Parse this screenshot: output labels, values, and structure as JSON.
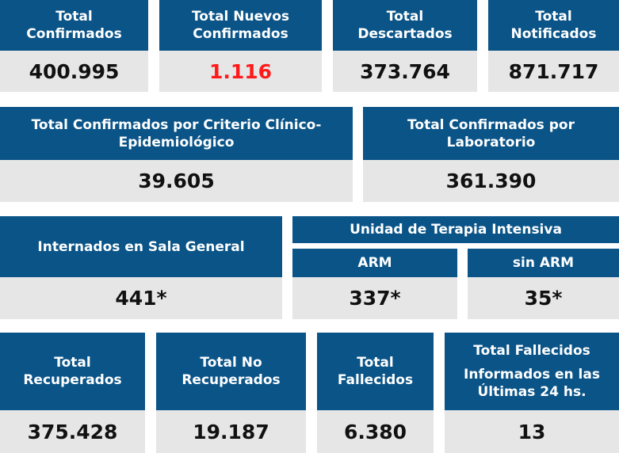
{
  "row1": {
    "confirmados": {
      "title": [
        "Total",
        "Confirmados"
      ],
      "value": "400.995"
    },
    "nuevos": {
      "title": [
        "Total Nuevos",
        "Confirmados"
      ],
      "value": "1.116",
      "value_color": "#ff1a1a"
    },
    "descartados": {
      "title": [
        "Total",
        "Descartados"
      ],
      "value": "373.764"
    },
    "notificados": {
      "title": [
        "Total",
        "Notificados"
      ],
      "value": "871.717"
    }
  },
  "row2": {
    "criterio": {
      "title": [
        "Total Confirmados por Criterio Clínico-",
        "Epidemiológico"
      ],
      "value": "39.605"
    },
    "laboratorio": {
      "title": [
        "Total Confirmados por",
        "Laboratorio"
      ],
      "value": "361.390"
    }
  },
  "row3": {
    "sala_general": {
      "title": "Internados en Sala General",
      "value": "441*"
    },
    "uti": {
      "title": "Unidad de Terapia Intensiva",
      "arm": {
        "title": "ARM",
        "value": "337*"
      },
      "sin_arm": {
        "title": "sin ARM",
        "value": "35*"
      }
    }
  },
  "row4": {
    "recuperados": {
      "title": [
        "Total",
        "Recuperados"
      ],
      "value": "375.428"
    },
    "no_recuperados": {
      "title": [
        "Total No",
        "Recuperados"
      ],
      "value": "19.187"
    },
    "fallecidos": {
      "title": [
        "Total",
        "Fallecidos"
      ],
      "value": "6.380"
    },
    "fallecidos_24": {
      "title": [
        "Total Fallecidos",
        "Informados en las",
        "Últimas 24 hs."
      ],
      "value": "13"
    }
  },
  "colors": {
    "header_bg": "#0a5488",
    "value_bg": "#e6e6e6",
    "highlight": "#ff1a1a"
  }
}
